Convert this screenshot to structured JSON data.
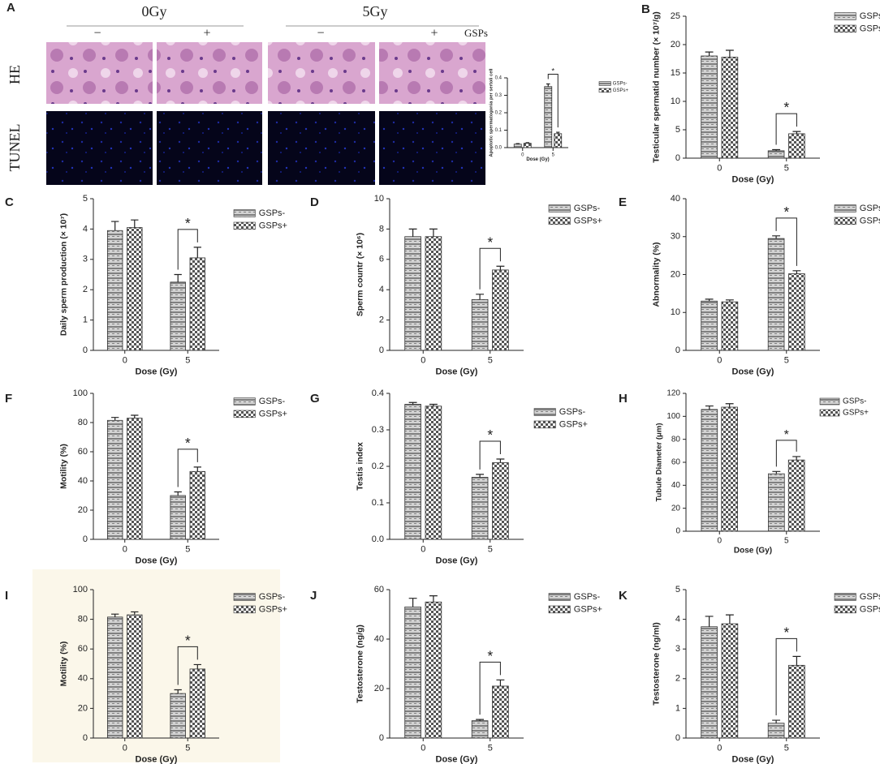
{
  "panel_a": {
    "label": "A",
    "doses": [
      "0Gy",
      "5Gy"
    ],
    "treatment_signs": [
      "−",
      "+",
      "−",
      "+"
    ],
    "treatment_label": "GSPs",
    "stains": [
      "HE",
      "TUNEL"
    ]
  },
  "chart_data": [
    {
      "type": "bar",
      "ylabel": "Apoptotic spermatogonia per sertoli cell",
      "xlabel": "Dose (Gy)",
      "categories": [
        "0",
        "5"
      ],
      "series": [
        {
          "name": "GSPs-",
          "color": "#808080",
          "pattern": "stripes",
          "values": [
            0.02,
            0.35
          ],
          "errors": [
            0.003,
            0.015
          ]
        },
        {
          "name": "GSPs+",
          "color": "#555555",
          "pattern": "checks",
          "values": [
            0.025,
            0.08
          ],
          "errors": [
            0.003,
            0.008
          ]
        }
      ],
      "ylim": [
        0,
        0.4
      ],
      "yticks": [
        {
          "value": 0,
          "label": "0.0"
        },
        0.1,
        0.2,
        0.3,
        0.4
      ],
      "annotation": "*"
    },
    {
      "type": "bar",
      "label": "B",
      "ylabel": "Testicular spermatid number (× 10⁷/g)",
      "xlabel": "Dose (Gy)",
      "categories": [
        "0",
        "5"
      ],
      "series": [
        {
          "name": "GSPs-",
          "color": "#808080",
          "pattern": "stripes",
          "values": [
            18,
            1.3
          ],
          "errors": [
            0.7,
            0.2
          ]
        },
        {
          "name": "GSPs+",
          "color": "#555555",
          "pattern": "checks",
          "values": [
            17.8,
            4.3
          ],
          "errors": [
            1.2,
            0.4
          ]
        }
      ],
      "ylim": [
        0,
        25
      ],
      "yticks": [
        0,
        5,
        10,
        15,
        20,
        25
      ],
      "annotation": "*"
    },
    {
      "type": "bar",
      "label": "C",
      "ylabel": "Daily sperm production (× 10⁷)",
      "xlabel": "Dose (Gy)",
      "categories": [
        "0",
        "5"
      ],
      "series": [
        {
          "name": "GSPs-",
          "color": "#808080",
          "pattern": "stripes",
          "values": [
            3.95,
            2.25
          ],
          "errors": [
            0.3,
            0.25
          ]
        },
        {
          "name": "GSPs+",
          "color": "#555555",
          "pattern": "checks",
          "values": [
            4.05,
            3.05
          ],
          "errors": [
            0.25,
            0.35
          ]
        }
      ],
      "ylim": [
        0,
        5
      ],
      "yticks": [
        0,
        1,
        2,
        3,
        4,
        5
      ],
      "annotation": "*"
    },
    {
      "type": "bar",
      "label": "D",
      "ylabel": "Sperm countr (× 10⁶)",
      "xlabel": "Dose (Gy)",
      "categories": [
        "0",
        "5"
      ],
      "series": [
        {
          "name": "GSPs-",
          "color": "#808080",
          "pattern": "stripes",
          "values": [
            7.5,
            3.35
          ],
          "errors": [
            0.5,
            0.35
          ]
        },
        {
          "name": "GSPs+",
          "color": "#555555",
          "pattern": "checks",
          "values": [
            7.5,
            5.3
          ],
          "errors": [
            0.5,
            0.25
          ]
        }
      ],
      "ylim": [
        0,
        10
      ],
      "yticks": [
        0,
        2,
        4,
        6,
        8,
        10
      ],
      "annotation": "*"
    },
    {
      "type": "bar",
      "label": "E",
      "ylabel": "Abnormality (%)",
      "xlabel": "Dose (Gy)",
      "categories": [
        "0",
        "5"
      ],
      "series": [
        {
          "name": "GSPs-",
          "color": "#808080",
          "pattern": "stripes",
          "values": [
            13,
            29.5
          ],
          "errors": [
            0.5,
            0.7
          ]
        },
        {
          "name": "GSPs+",
          "color": "#555555",
          "pattern": "checks",
          "values": [
            12.8,
            20.2
          ],
          "errors": [
            0.5,
            0.8
          ]
        }
      ],
      "ylim": [
        0,
        40
      ],
      "yticks": [
        0,
        10,
        20,
        30,
        40
      ],
      "annotation": "*"
    },
    {
      "type": "bar",
      "label": "F",
      "ylabel": "Motility (%)",
      "xlabel": "Dose (Gy)",
      "categories": [
        "0",
        "5"
      ],
      "series": [
        {
          "name": "GSPs-",
          "color": "#808080",
          "pattern": "stripes",
          "values": [
            81.5,
            30
          ],
          "errors": [
            2,
            2.5
          ]
        },
        {
          "name": "GSPs+",
          "color": "#555555",
          "pattern": "checks",
          "values": [
            83,
            46.5
          ],
          "errors": [
            2,
            3
          ]
        }
      ],
      "ylim": [
        0,
        100
      ],
      "yticks": [
        0,
        20,
        40,
        60,
        80,
        100
      ],
      "annotation": "*"
    },
    {
      "type": "bar",
      "label": "G",
      "ylabel": "Testis index",
      "xlabel": "Dose (Gy)",
      "categories": [
        "0",
        "5"
      ],
      "series": [
        {
          "name": "GSPs-",
          "color": "#808080",
          "pattern": "stripes",
          "values": [
            0.37,
            0.17
          ],
          "errors": [
            0.005,
            0.008
          ]
        },
        {
          "name": "GSPs+",
          "color": "#555555",
          "pattern": "checks",
          "values": [
            0.365,
            0.21
          ],
          "errors": [
            0.005,
            0.01
          ]
        }
      ],
      "ylim": [
        0,
        0.4
      ],
      "yticks": [
        {
          "value": 0,
          "label": "0.0"
        },
        0.1,
        0.2,
        0.3,
        0.4
      ],
      "annotation": "*"
    },
    {
      "type": "bar",
      "label": "H",
      "ylabel": "Tubule Diameter (μm)",
      "xlabel": "Dose (Gy)",
      "categories": [
        "0",
        "5"
      ],
      "series": [
        {
          "name": "GSPs-",
          "color": "#808080",
          "pattern": "stripes",
          "values": [
            106,
            50
          ],
          "errors": [
            3,
            2
          ]
        },
        {
          "name": "GSPs+",
          "color": "#555555",
          "pattern": "checks",
          "values": [
            108,
            62
          ],
          "errors": [
            3,
            3
          ]
        }
      ],
      "ylim": [
        0,
        120
      ],
      "yticks": [
        0,
        20,
        40,
        60,
        80,
        100,
        120
      ],
      "annotation": "*"
    },
    {
      "type": "bar",
      "label": "I",
      "ylabel": "Motility (%)",
      "xlabel": "Dose (Gy)",
      "categories": [
        "0",
        "5"
      ],
      "series": [
        {
          "name": "GSPs-",
          "color": "#808080",
          "pattern": "stripes",
          "values": [
            81.5,
            30
          ],
          "errors": [
            2,
            2.5
          ]
        },
        {
          "name": "GSPs+",
          "color": "#555555",
          "pattern": "checks",
          "values": [
            83,
            46.5
          ],
          "errors": [
            2,
            3
          ]
        }
      ],
      "ylim": [
        0,
        100
      ],
      "yticks": [
        0,
        20,
        40,
        60,
        80,
        100
      ],
      "annotation": "*"
    },
    {
      "type": "bar",
      "label": "J",
      "ylabel": "Testosterone  (ng/g)",
      "xlabel": "Dose (Gy)",
      "categories": [
        "0",
        "5"
      ],
      "series": [
        {
          "name": "GSPs-",
          "color": "#808080",
          "pattern": "stripes",
          "values": [
            53,
            7
          ],
          "errors": [
            3.5,
            0.5
          ]
        },
        {
          "name": "GSPs+",
          "color": "#555555",
          "pattern": "checks",
          "values": [
            55,
            21
          ],
          "errors": [
            2.5,
            2.5
          ]
        }
      ],
      "ylim": [
        0,
        60
      ],
      "yticks": [
        0,
        20,
        40,
        60
      ],
      "annotation": "*"
    },
    {
      "type": "bar",
      "label": "K",
      "ylabel": "Testosterone  (ng/ml)",
      "xlabel": "Dose (Gy)",
      "categories": [
        "0",
        "5"
      ],
      "series": [
        {
          "name": "GSPs-",
          "color": "#808080",
          "pattern": "stripes",
          "values": [
            3.75,
            0.5
          ],
          "errors": [
            0.35,
            0.1
          ]
        },
        {
          "name": "GSPs+",
          "color": "#555555",
          "pattern": "checks",
          "values": [
            3.85,
            2.45
          ],
          "errors": [
            0.3,
            0.3
          ]
        }
      ],
      "ylim": [
        0,
        5
      ],
      "yticks": [
        0,
        1,
        2,
        3,
        4,
        5
      ],
      "annotation": "*"
    }
  ]
}
